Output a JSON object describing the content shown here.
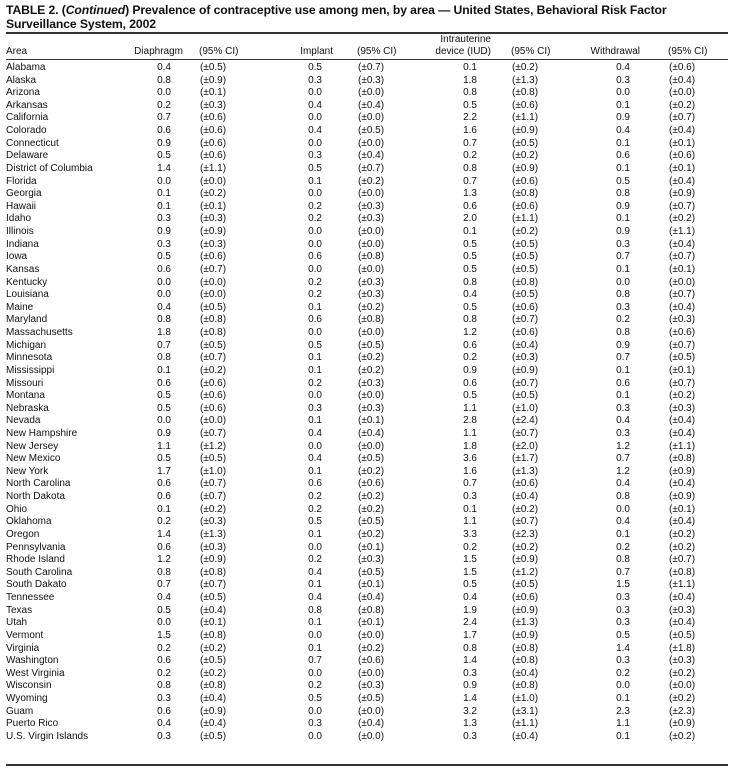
{
  "title": {
    "prefix": "TABLE 2. (",
    "italic": "Continued",
    "suffix": ") Prevalence of contraceptive use among men, by area — United States, Behavioral Risk Factor Surveillance System, 2002"
  },
  "headers": {
    "area": "Area",
    "diaphragm": "Diaphragm",
    "ci1": "(95% CI)",
    "implant": "Implant",
    "ci2": "(95% CI)",
    "iud_line1": "Intrauterine",
    "iud_line2": "device (IUD)",
    "ci3": "(95% CI)",
    "withdrawal": "Withdrawal",
    "ci4": "(95% CI)"
  },
  "rows": [
    [
      "Alabama",
      "0.4",
      "(±0.5)",
      "0.5",
      "(±0.7)",
      "0.1",
      "(±0.2)",
      "0.4",
      "(±0.6)"
    ],
    [
      "Alaska",
      "0.8",
      "(±0.9)",
      "0.3",
      "(±0.3)",
      "1.8",
      "(±1.3)",
      "0.3",
      "(±0.4)"
    ],
    [
      "Arizona",
      "0.0",
      "(±0.1)",
      "0.0",
      "(±0.0)",
      "0.8",
      "(±0.8)",
      "0.0",
      "(±0.0)"
    ],
    [
      "Arkansas",
      "0.2",
      "(±0.3)",
      "0.4",
      "(±0.4)",
      "0.5",
      "(±0.6)",
      "0.1",
      "(±0.2)"
    ],
    [
      "California",
      "0.7",
      "(±0.6)",
      "0.0",
      "(±0.0)",
      "2.2",
      "(±1.1)",
      "0.9",
      "(±0.7)"
    ],
    [
      "Colorado",
      "0.6",
      "(±0.6)",
      "0.4",
      "(±0.5)",
      "1.6",
      "(±0.9)",
      "0.4",
      "(±0.4)"
    ],
    [
      "Connecticut",
      "0.9",
      "(±0.6)",
      "0.0",
      "(±0.0)",
      "0.7",
      "(±0.5)",
      "0.1",
      "(±0.1)"
    ],
    [
      "Delaware",
      "0.5",
      "(±0.6)",
      "0.3",
      "(±0.4)",
      "0.2",
      "(±0.2)",
      "0.6",
      "(±0.6)"
    ],
    [
      "District of Columbia",
      "1.4",
      "(±1.1)",
      "0.5",
      "(±0.7)",
      "0.8",
      "(±0.9)",
      "0.1",
      "(±0.1)"
    ],
    [
      "Florida",
      "0.0",
      "(±0.0)",
      "0.1",
      "(±0.2)",
      "0.7",
      "(±0.6)",
      "0.5",
      "(±0.4)"
    ],
    [
      "Georgia",
      "0.1",
      "(±0.2)",
      "0.0",
      "(±0.0)",
      "1.3",
      "(±0.8)",
      "0.8",
      "(±0.9)"
    ],
    [
      "Hawaii",
      "0.1",
      "(±0.1)",
      "0.2",
      "(±0.3)",
      "0.6",
      "(±0.6)",
      "0.9",
      "(±0.7)"
    ],
    [
      "Idaho",
      "0.3",
      "(±0.3)",
      "0.2",
      "(±0.3)",
      "2.0",
      "(±1.1)",
      "0.1",
      "(±0.2)"
    ],
    [
      "Illinois",
      "0.9",
      "(±0.9)",
      "0.0",
      "(±0.0)",
      "0.1",
      "(±0.2)",
      "0.9",
      "(±1.1)"
    ],
    [
      "Indiana",
      "0.3",
      "(±0.3)",
      "0.0",
      "(±0.0)",
      "0.5",
      "(±0.5)",
      "0.3",
      "(±0.4)"
    ],
    [
      "Iowa",
      "0.5",
      "(±0.6)",
      "0.6",
      "(±0.8)",
      "0.5",
      "(±0.5)",
      "0.7",
      "(±0.7)"
    ],
    [
      "Kansas",
      "0.6",
      "(±0.7)",
      "0.0",
      "(±0.0)",
      "0.5",
      "(±0.5)",
      "0.1",
      "(±0.1)"
    ],
    [
      "Kentucky",
      "0.0",
      "(±0.0)",
      "0.2",
      "(±0.3)",
      "0.8",
      "(±0.8)",
      "0.0",
      "(±0.0)"
    ],
    [
      "Louisiana",
      "0.0",
      "(±0.0)",
      "0.2",
      "(±0.3)",
      "0.4",
      "(±0.5)",
      "0.8",
      "(±0.7)"
    ],
    [
      "Maine",
      "0.4",
      "(±0.5)",
      "0.1",
      "(±0.2)",
      "0.5",
      "(±0.6)",
      "0.3",
      "(±0.4)"
    ],
    [
      "Maryland",
      "0.8",
      "(±0.8)",
      "0.6",
      "(±0.8)",
      "0.8",
      "(±0.7)",
      "0.2",
      "(±0.3)"
    ],
    [
      "Massachusetts",
      "1.8",
      "(±0.8)",
      "0.0",
      "(±0.0)",
      "1.2",
      "(±0.6)",
      "0.8",
      "(±0.6)"
    ],
    [
      "Michigan",
      "0.7",
      "(±0.5)",
      "0.5",
      "(±0.5)",
      "0.6",
      "(±0.4)",
      "0.9",
      "(±0.7)"
    ],
    [
      "Minnesota",
      "0.8",
      "(±0.7)",
      "0.1",
      "(±0.2)",
      "0.2",
      "(±0.3)",
      "0.7",
      "(±0.5)"
    ],
    [
      "Mississippi",
      "0.1",
      "(±0.2)",
      "0.1",
      "(±0.2)",
      "0.9",
      "(±0.9)",
      "0.1",
      "(±0.1)"
    ],
    [
      "Missouri",
      "0.6",
      "(±0.6)",
      "0.2",
      "(±0.3)",
      "0.6",
      "(±0.7)",
      "0.6",
      "(±0.7)"
    ],
    [
      "Montana",
      "0.5",
      "(±0.6)",
      "0.0",
      "(±0.0)",
      "0.5",
      "(±0.5)",
      "0.1",
      "(±0.2)"
    ],
    [
      "Nebraska",
      "0.5",
      "(±0.6)",
      "0.3",
      "(±0.3)",
      "1.1",
      "(±1.0)",
      "0.3",
      "(±0.3)"
    ],
    [
      "Nevada",
      "0.0",
      "(±0.0)",
      "0.1",
      "(±0.1)",
      "2.8",
      "(±2.4)",
      "0.4",
      "(±0.4)"
    ],
    [
      "New Hampshire",
      "0.9",
      "(±0.7)",
      "0.4",
      "(±0.4)",
      "1.1",
      "(±0.7)",
      "0.3",
      "(±0.4)"
    ],
    [
      "New Jersey",
      "1.1",
      "(±1.2)",
      "0.0",
      "(±0.0)",
      "1.8",
      "(±2.0)",
      "1.2",
      "(±1.1)"
    ],
    [
      "New Mexico",
      "0.5",
      "(±0.5)",
      "0.4",
      "(±0.5)",
      "3.6",
      "(±1.7)",
      "0.7",
      "(±0.8)"
    ],
    [
      "New York",
      "1.7",
      "(±1.0)",
      "0.1",
      "(±0.2)",
      "1.6",
      "(±1.3)",
      "1.2",
      "(±0.9)"
    ],
    [
      "North Carolina",
      "0.6",
      "(±0.7)",
      "0.6",
      "(±0.6)",
      "0.7",
      "(±0.6)",
      "0.4",
      "(±0.4)"
    ],
    [
      "North Dakota",
      "0.6",
      "(±0.7)",
      "0.2",
      "(±0.2)",
      "0.3",
      "(±0.4)",
      "0.8",
      "(±0.9)"
    ],
    [
      "Ohio",
      "0.1",
      "(±0.2)",
      "0.2",
      "(±0.2)",
      "0.1",
      "(±0.2)",
      "0.0",
      "(±0.1)"
    ],
    [
      "Oklahoma",
      "0.2",
      "(±0.3)",
      "0.5",
      "(±0.5)",
      "1.1",
      "(±0.7)",
      "0.4",
      "(±0.4)"
    ],
    [
      "Oregon",
      "1.4",
      "(±1.3)",
      "0.1",
      "(±0.2)",
      "3.3",
      "(±2.3)",
      "0.1",
      "(±0.2)"
    ],
    [
      "Pennsylvania",
      "0.6",
      "(±0.3)",
      "0.0",
      "(±0.1)",
      "0.2",
      "(±0.2)",
      "0.2",
      "(±0.2)"
    ],
    [
      "Rhode Island",
      "1.2",
      "(±0.9)",
      "0.2",
      "(±0.3)",
      "1.5",
      "(±0.9)",
      "0.8",
      "(±0.7)"
    ],
    [
      "South Carolina",
      "0.8",
      "(±0.8)",
      "0.4",
      "(±0.5)",
      "1.5",
      "(±1.2)",
      "0.7",
      "(±0.8)"
    ],
    [
      "South Dakato",
      "0.7",
      "(±0.7)",
      "0.1",
      "(±0.1)",
      "0.5",
      "(±0.5)",
      "1.5",
      "(±1.1)"
    ],
    [
      "Tennessee",
      "0.4",
      "(±0.5)",
      "0.4",
      "(±0.4)",
      "0.4",
      "(±0.6)",
      "0.3",
      "(±0.4)"
    ],
    [
      "Texas",
      "0.5",
      "(±0.4)",
      "0.8",
      "(±0.8)",
      "1.9",
      "(±0.9)",
      "0.3",
      "(±0.3)"
    ],
    [
      "Utah",
      "0.0",
      "(±0.1)",
      "0.1",
      "(±0.1)",
      "2.4",
      "(±1.3)",
      "0.3",
      "(±0.4)"
    ],
    [
      "Vermont",
      "1.5",
      "(±0.8)",
      "0.0",
      "(±0.0)",
      "1.7",
      "(±0.9)",
      "0.5",
      "(±0.5)"
    ],
    [
      "Virginia",
      "0.2",
      "(±0.2)",
      "0.1",
      "(±0.2)",
      "0.8",
      "(±0.8)",
      "1.4",
      "(±1.8)"
    ],
    [
      "Washington",
      "0.6",
      "(±0.5)",
      "0.7",
      "(±0.6)",
      "1.4",
      "(±0.8)",
      "0.3",
      "(±0.3)"
    ],
    [
      "West Virginia",
      "0.2",
      "(±0.2)",
      "0.0",
      "(±0.0)",
      "0.3",
      "(±0.4)",
      "0.2",
      "(±0.2)"
    ],
    [
      "Wisconsin",
      "0.8",
      "(±0.8)",
      "0.2",
      "(±0.3)",
      "0.9",
      "(±0.8)",
      "0.0",
      "(±0.0)"
    ],
    [
      "Wyoming",
      "0.3",
      "(±0.4)",
      "0.5",
      "(±0.5)",
      "1.4",
      "(±1.0)",
      "0.1",
      "(±0.2)"
    ],
    [
      "Guam",
      "0.6",
      "(±0.9)",
      "0.0",
      "(±0.0)",
      "3.2",
      "(±3.1)",
      "2.3",
      "(±2.3)"
    ],
    [
      "Puerto Rico",
      "0.4",
      "(±0.4)",
      "0.3",
      "(±0.4)",
      "1.3",
      "(±1.1)",
      "1.1",
      "(±0.9)"
    ],
    [
      "U.S. Virgin Islands",
      "0.3",
      "(±0.5)",
      "0.0",
      "(±0.0)",
      "0.3",
      "(±0.4)",
      "0.1",
      "(±0.2)"
    ]
  ]
}
